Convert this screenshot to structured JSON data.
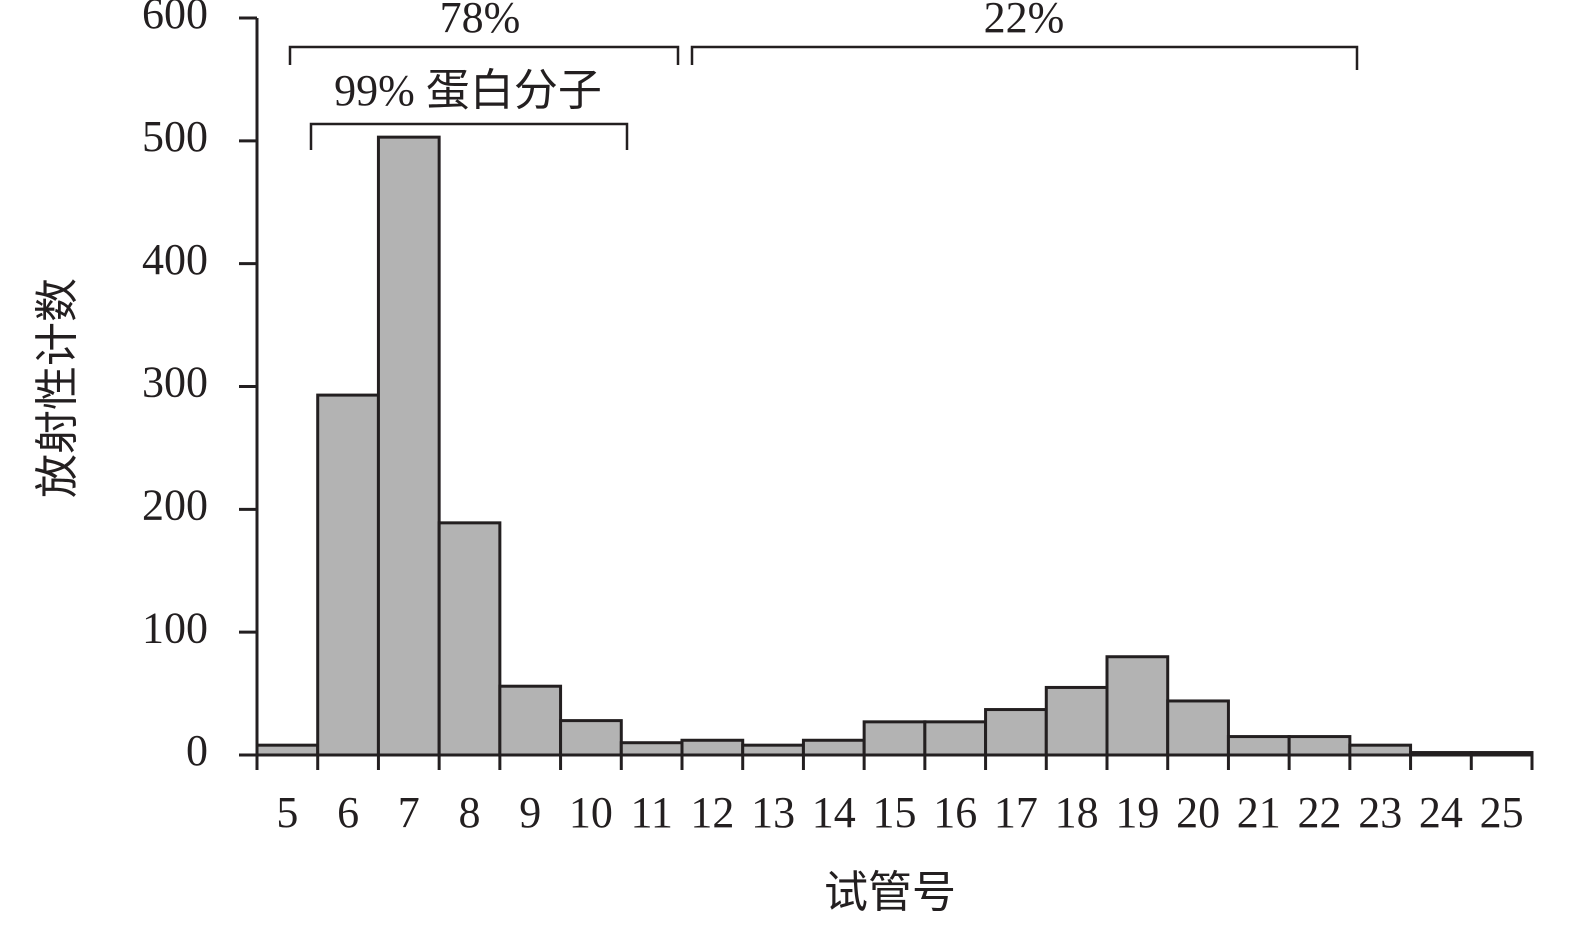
{
  "chart_data": {
    "type": "bar",
    "x_label": "试管号",
    "y_label": "放射性计数",
    "annotations": [
      "78%",
      "22%",
      "99% 蛋白分子"
    ],
    "categories": [
      "5",
      "6",
      "7",
      "8",
      "9",
      "10",
      "11",
      "12",
      "13",
      "14",
      "15",
      "16",
      "17",
      "18",
      "19",
      "20",
      "21",
      "22",
      "23",
      "24",
      "25"
    ],
    "values": [
      8,
      293,
      503,
      189,
      56,
      28,
      10,
      12,
      8,
      12,
      27,
      27,
      37,
      55,
      80,
      44,
      15,
      15,
      8,
      2,
      2
    ],
    "color": "#b3b3b3",
    "ylim": [
      0,
      600
    ],
    "yticks": [
      0,
      100,
      200,
      300,
      400,
      500,
      600
    ]
  }
}
